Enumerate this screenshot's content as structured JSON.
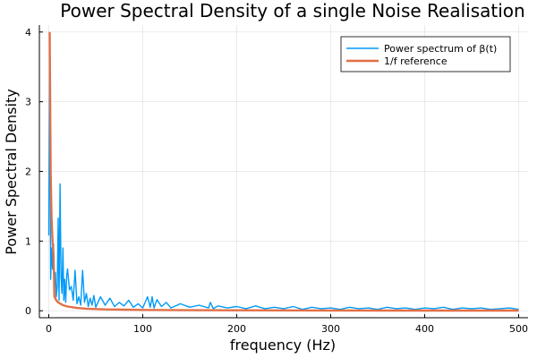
{
  "chart_data": {
    "type": "line",
    "title": "Power Spectral Density of a single Noise Realisation",
    "xlabel": "frequency (Hz)",
    "ylabel": "Power Spectral Density",
    "xlim": [
      -10,
      510
    ],
    "ylim": [
      -0.1,
      4.1
    ],
    "xticks": [
      0,
      100,
      200,
      300,
      400,
      500
    ],
    "xtick_labels": [
      "0",
      "100",
      "200",
      "300",
      "400",
      "500"
    ],
    "yticks": [
      0,
      1,
      2,
      3,
      4
    ],
    "ytick_labels": [
      "0",
      "1",
      "2",
      "3",
      "4"
    ],
    "grid": true,
    "legend_position": "top-right",
    "series": [
      {
        "name": "Power spectrum of β(t)",
        "color": "#009af9",
        "x": [
          0,
          1,
          2,
          3,
          4,
          5,
          6,
          7,
          8,
          9,
          10,
          11,
          12,
          13,
          14,
          15,
          16,
          17,
          18,
          19,
          20,
          22,
          24,
          26,
          28,
          30,
          32,
          34,
          36,
          38,
          40,
          42,
          44,
          46,
          48,
          50,
          55,
          60,
          65,
          70,
          75,
          80,
          85,
          90,
          95,
          100,
          105,
          108,
          110,
          112,
          115,
          120,
          125,
          130,
          140,
          150,
          160,
          170,
          172,
          175,
          180,
          190,
          200,
          210,
          220,
          230,
          240,
          250,
          260,
          270,
          280,
          290,
          300,
          310,
          320,
          330,
          340,
          350,
          360,
          370,
          380,
          390,
          400,
          410,
          420,
          430,
          440,
          450,
          460,
          470,
          480,
          490,
          500
        ],
        "values": [
          1.08,
          3.88,
          0.45,
          0.9,
          0.6,
          0.96,
          0.3,
          0.55,
          0.2,
          0.35,
          1.33,
          0.15,
          1.82,
          0.5,
          0.25,
          0.9,
          0.15,
          0.45,
          0.12,
          0.5,
          0.6,
          0.3,
          0.35,
          0.15,
          0.58,
          0.1,
          0.2,
          0.08,
          0.58,
          0.12,
          0.25,
          0.06,
          0.18,
          0.08,
          0.22,
          0.05,
          0.2,
          0.08,
          0.18,
          0.06,
          0.12,
          0.07,
          0.15,
          0.05,
          0.1,
          0.04,
          0.2,
          0.05,
          0.2,
          0.04,
          0.16,
          0.06,
          0.12,
          0.04,
          0.1,
          0.05,
          0.08,
          0.04,
          0.12,
          0.03,
          0.07,
          0.04,
          0.06,
          0.03,
          0.07,
          0.03,
          0.05,
          0.03,
          0.06,
          0.02,
          0.05,
          0.03,
          0.04,
          0.02,
          0.05,
          0.03,
          0.04,
          0.02,
          0.05,
          0.03,
          0.04,
          0.02,
          0.04,
          0.03,
          0.05,
          0.02,
          0.04,
          0.03,
          0.04,
          0.02,
          0.03,
          0.04,
          0.02
        ]
      },
      {
        "name": "1/f reference",
        "color": "#e26f46",
        "x": [
          1,
          2,
          3,
          4,
          5,
          6,
          8,
          10,
          15,
          20,
          30,
          40,
          60,
          80,
          100,
          150,
          200,
          300,
          400,
          500
        ],
        "values": [
          4.0,
          2.0,
          1.33,
          1.0,
          0.8,
          0.2,
          0.15,
          0.12,
          0.08,
          0.06,
          0.04,
          0.03,
          0.02,
          0.015,
          0.012,
          0.008,
          0.006,
          0.004,
          0.003,
          0.0024
        ]
      }
    ]
  }
}
